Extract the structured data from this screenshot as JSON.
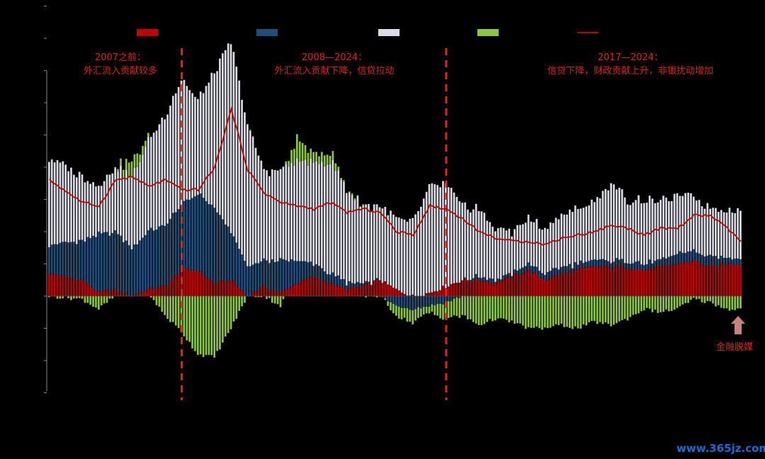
{
  "chart_data": {
    "type": "bar",
    "subtype": "stacked-bar-with-line",
    "grid": false,
    "legend_position": "top",
    "x_start": "2004-01",
    "x_end": "2024-12",
    "x_frequency": "monthly",
    "ylim": [
      -3,
      10
    ],
    "y_reference": [
      0,
      2,
      4,
      6,
      8,
      10
    ],
    "anchor_months": [
      0,
      12,
      18,
      24,
      30,
      36,
      42,
      48,
      54,
      60,
      66,
      72,
      78,
      84,
      90,
      96,
      102,
      108,
      114,
      120,
      126,
      132,
      138,
      144,
      150,
      156,
      162,
      168,
      174,
      180,
      186,
      192,
      198,
      204,
      210,
      216,
      222,
      228,
      234,
      240,
      246,
      251
    ],
    "series": [
      {
        "color": "#c00000",
        "values": [
          0.7,
          0.5,
          0.1,
          0.2,
          0.0,
          0.2,
          0.3,
          0.8,
          0.8,
          0.4,
          0.5,
          0.0,
          0.3,
          0.1,
          0.4,
          0.6,
          0.4,
          0.2,
          0.3,
          0.5,
          0.2,
          0.0,
          0.1,
          0.3,
          0.5,
          0.5,
          0.4,
          0.6,
          0.8,
          0.5,
          0.7,
          0.8,
          0.9,
          0.9,
          0.9,
          0.8,
          0.9,
          1.0,
          1.1,
          0.9,
          1.0,
          1.0
        ]
      },
      {
        "color": "#1f4e79",
        "values": [
          0.9,
          1.2,
          1.8,
          1.8,
          1.5,
          1.8,
          1.9,
          2.0,
          2.4,
          2.3,
          1.5,
          0.9,
          0.8,
          1.0,
          0.7,
          0.4,
          0.3,
          0.2,
          0.1,
          0.0,
          -0.3,
          -0.4,
          -0.3,
          -0.2,
          0.0,
          0.1,
          0.1,
          0.1,
          0.2,
          0.2,
          0.2,
          0.2,
          0.2,
          0.2,
          0.2,
          0.2,
          0.2,
          0.3,
          0.3,
          0.3,
          0.2,
          0.2
        ]
      },
      {
        "color": "#dcdce6",
        "values": [
          2.7,
          2.0,
          1.5,
          2.0,
          2.2,
          2.8,
          3.4,
          3.9,
          2.9,
          4.2,
          5.9,
          4.4,
          2.8,
          2.8,
          3.1,
          3.1,
          3.5,
          2.9,
          2.4,
          2.3,
          2.2,
          2.3,
          3.3,
          3.2,
          2.3,
          2.1,
          1.6,
          1.3,
          1.4,
          1.4,
          1.6,
          1.7,
          1.8,
          2.4,
          1.9,
          2.0,
          1.8,
          1.8,
          1.7,
          1.5,
          1.5,
          1.5
        ]
      },
      {
        "color": "#8cc63f",
        "values": [
          0.0,
          -0.1,
          -0.4,
          0.0,
          0.5,
          0.1,
          -0.6,
          -1.1,
          -1.8,
          -1.9,
          -1.0,
          0.0,
          0.0,
          -0.3,
          0.7,
          0.3,
          0.3,
          0.0,
          0.0,
          0.0,
          -0.3,
          -0.4,
          -0.2,
          -0.5,
          -0.6,
          -0.9,
          -0.7,
          -0.8,
          -1.0,
          -1.0,
          -0.9,
          -1.0,
          -0.8,
          -0.9,
          -0.7,
          -0.4,
          -0.5,
          -0.4,
          -0.1,
          -0.2,
          -0.4,
          -0.4
        ]
      },
      {
        "color": "#c00000",
        "type": "line",
        "values": [
          3.6,
          2.9,
          2.8,
          3.6,
          3.7,
          3.4,
          3.6,
          3.3,
          3.3,
          4.0,
          5.8,
          3.9,
          3.2,
          2.9,
          2.8,
          2.7,
          2.9,
          2.6,
          2.7,
          2.6,
          2.0,
          1.9,
          2.8,
          2.7,
          2.4,
          2.0,
          1.8,
          1.7,
          1.7,
          1.6,
          1.8,
          1.9,
          2.0,
          2.2,
          2.1,
          1.9,
          2.1,
          2.1,
          2.5,
          2.5,
          2.1,
          1.7
        ]
      }
    ]
  },
  "annotations": [
    {
      "title": "2007之前：",
      "text": "外汇流入贡献较多"
    },
    {
      "title": "2008—2024：",
      "text": "外汇流入贡献下降，信贷拉动"
    },
    {
      "title": "2017—2024：",
      "text": "信贷下降，财政贡献上升，非银扰动增加"
    }
  ],
  "divider_months": [
    48,
    144
  ],
  "callout": "金融脱媒",
  "watermark": "www.365jz.com",
  "colors": {
    "background": "#000000",
    "annotation": "#d9261c",
    "axis": "#888888",
    "arrow": "#c8847a",
    "watermark": "#1e6bd0"
  }
}
